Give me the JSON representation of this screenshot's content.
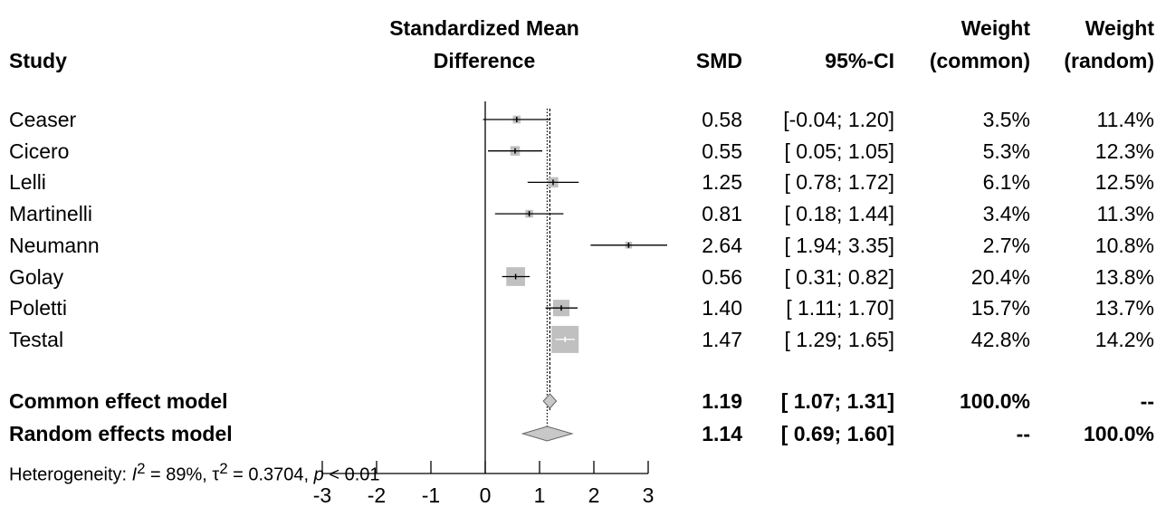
{
  "headers": {
    "study": "Study",
    "smd_line1": "Standardized Mean",
    "smd_line2": "Difference",
    "smd": "SMD",
    "ci": "95%-CI",
    "weight_common_line1": "Weight",
    "weight_common_line2": "(common)",
    "weight_random_line1": "Weight",
    "weight_random_line2": "(random)"
  },
  "summary": [
    {
      "label": "Common effect model",
      "smd": "1.19",
      "ci": "[ 1.07; 1.31]",
      "weight_common": "100.0%",
      "weight_random": "--"
    },
    {
      "label": "Random effects model",
      "smd": "1.14",
      "ci": "[ 0.69; 1.60]",
      "weight_common": "--",
      "weight_random": "100.0%"
    }
  ],
  "heterogeneity": {
    "prefix": "Heterogeneity: ",
    "i2_symbol": "I",
    "i2_sup": "2",
    "i2_value": " = 89%, ",
    "tau_symbol": "τ",
    "tau_sup": "2",
    "tau_value": " = 0.3704, ",
    "p_symbol": "p",
    "p_value": " < 0.01"
  },
  "chart_data": {
    "type": "forest",
    "xlim": [
      -3,
      3
    ],
    "ticks": [
      -3,
      -2,
      -1,
      0,
      1,
      2,
      3
    ],
    "null_value": 0,
    "studies": [
      {
        "name": "Ceaser",
        "smd": 0.58,
        "lower": -0.04,
        "upper": 1.2,
        "smd_text": "0.58",
        "ci_text": "[-0.04; 1.20]",
        "weight_common": 3.5,
        "weight_common_text": "3.5%",
        "weight_random_text": "11.4%"
      },
      {
        "name": "Cicero",
        "smd": 0.55,
        "lower": 0.05,
        "upper": 1.05,
        "smd_text": "0.55",
        "ci_text": "[ 0.05; 1.05]",
        "weight_common": 5.3,
        "weight_common_text": "5.3%",
        "weight_random_text": "12.3%"
      },
      {
        "name": "Lelli",
        "smd": 1.25,
        "lower": 0.78,
        "upper": 1.72,
        "smd_text": "1.25",
        "ci_text": "[ 0.78; 1.72]",
        "weight_common": 6.1,
        "weight_common_text": "6.1%",
        "weight_random_text": "12.5%"
      },
      {
        "name": "Martinelli",
        "smd": 0.81,
        "lower": 0.18,
        "upper": 1.44,
        "smd_text": "0.81",
        "ci_text": "[ 0.18; 1.44]",
        "weight_common": 3.4,
        "weight_common_text": "3.4%",
        "weight_random_text": "11.3%"
      },
      {
        "name": "Neumann",
        "smd": 2.64,
        "lower": 1.94,
        "upper": 3.35,
        "smd_text": "2.64",
        "ci_text": "[ 1.94; 3.35]",
        "weight_common": 2.7,
        "weight_common_text": "2.7%",
        "weight_random_text": "10.8%"
      },
      {
        "name": "Golay",
        "smd": 0.56,
        "lower": 0.31,
        "upper": 0.82,
        "smd_text": "0.56",
        "ci_text": "[ 0.31; 0.82]",
        "weight_common": 20.4,
        "weight_common_text": "20.4%",
        "weight_random_text": "13.8%"
      },
      {
        "name": "Poletti",
        "smd": 1.4,
        "lower": 1.11,
        "upper": 1.7,
        "smd_text": "1.40",
        "ci_text": "[ 1.11; 1.70]",
        "weight_common": 15.7,
        "weight_common_text": "15.7%",
        "weight_random_text": "13.7%"
      },
      {
        "name": "Testal",
        "smd": 1.47,
        "lower": 1.29,
        "upper": 1.65,
        "smd_text": "1.47",
        "ci_text": "[ 1.29; 1.65]",
        "weight_common": 42.8,
        "weight_common_text": "42.8%",
        "weight_random_text": "14.2%"
      }
    ],
    "common_effect": {
      "smd": 1.19,
      "lower": 1.07,
      "upper": 1.31
    },
    "random_effects": {
      "smd": 1.14,
      "lower": 0.69,
      "upper": 1.6
    },
    "colors": {
      "square": "#c0c0c0",
      "diamond": "#c8c8c8",
      "line": "#000000"
    }
  }
}
